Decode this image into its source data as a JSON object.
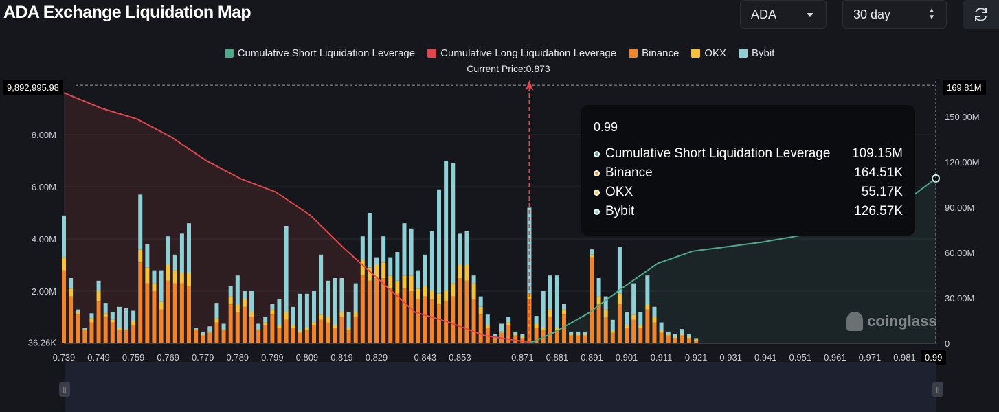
{
  "header": {
    "title": "ADA Exchange Liquidation Map",
    "symbol_select": "ADA",
    "range_select": "30 day"
  },
  "colors": {
    "short": "#4fa88a",
    "long": "#e0474c",
    "binance": "#f0852d",
    "okx": "#f5c33b",
    "bybit": "#8fd0d6"
  },
  "chart_data": {
    "type": "bar",
    "title": "",
    "x_ticks": [
      "0.739",
      "0.749",
      "0.759",
      "0.769",
      "0.779",
      "0.789",
      "0.799",
      "0.809",
      "0.819",
      "0.829",
      "0.843",
      "0.853",
      "0.871",
      "0.881",
      "0.891",
      "0.901",
      "0.911",
      "0.921",
      "0.931",
      "0.941",
      "0.951",
      "0.961",
      "0.971",
      "0.981"
    ],
    "x_end_label": "0.99",
    "left_axis_ticks": [
      "36.26K",
      "2.00M",
      "4.00M",
      "6.00M",
      "8.00M"
    ],
    "left_axis_top": "9,892,995.98",
    "right_axis_ticks": [
      "0",
      "30.00M",
      "60.00M",
      "90.00M",
      "120.00M",
      "150.00M"
    ],
    "right_axis_top": "169.81M",
    "current_price_label": "Current Price:0.873",
    "current_price": 0.873,
    "legend": [
      "Cumulative Short Liquidation Leverage",
      "Cumulative Long Liquidation Leverage",
      "Binance",
      "OKX",
      "Bybit"
    ],
    "bars": [
      [
        0.739,
        2.8,
        0.5,
        1.6
      ],
      [
        0.741,
        1.8,
        0.3,
        0.4
      ],
      [
        0.743,
        1.1,
        0.1,
        0.1
      ],
      [
        0.745,
        0.5,
        0.05,
        0.05
      ],
      [
        0.747,
        0.8,
        0.15,
        0.2
      ],
      [
        0.749,
        1.6,
        0.4,
        0.4
      ],
      [
        0.751,
        1.0,
        0.15,
        0.4
      ],
      [
        0.753,
        0.8,
        0.1,
        0.3
      ],
      [
        0.755,
        0.5,
        0.1,
        0.8
      ],
      [
        0.757,
        0.5,
        0.05,
        0.8
      ],
      [
        0.759,
        0.7,
        0.15,
        0.4
      ],
      [
        0.761,
        3.1,
        0.5,
        2.1
      ],
      [
        0.763,
        2.3,
        0.6,
        0.9
      ],
      [
        0.765,
        2.0,
        0.3,
        0.5
      ],
      [
        0.767,
        1.3,
        0.3,
        1.2
      ],
      [
        0.769,
        2.4,
        0.6,
        1.1
      ],
      [
        0.771,
        2.3,
        0.5,
        0.6
      ],
      [
        0.773,
        2.3,
        0.4,
        1.5
      ],
      [
        0.775,
        2.2,
        0.5,
        1.9
      ],
      [
        0.777,
        0.5,
        0.05,
        0.05
      ],
      [
        0.779,
        0.3,
        0.05,
        0.1
      ],
      [
        0.781,
        0.4,
        0.05,
        0.2
      ],
      [
        0.783,
        0.8,
        0.15,
        0.6
      ],
      [
        0.785,
        0.5,
        0.05,
        0.2
      ],
      [
        0.787,
        1.5,
        0.3,
        0.4
      ],
      [
        0.789,
        1.2,
        0.3,
        1.1
      ],
      [
        0.791,
        1.4,
        0.3,
        0.3
      ],
      [
        0.793,
        1.0,
        0.2,
        0.8
      ],
      [
        0.795,
        0.5,
        0.05,
        0.2
      ],
      [
        0.797,
        0.7,
        0.1,
        0.2
      ],
      [
        0.799,
        1.1,
        0.2,
        0.2
      ],
      [
        0.801,
        0.6,
        0.1,
        1.0
      ],
      [
        0.803,
        0.9,
        0.3,
        3.3
      ],
      [
        0.805,
        0.6,
        0.1,
        0.7
      ],
      [
        0.807,
        0.4,
        0.1,
        1.4
      ],
      [
        0.809,
        0.5,
        0.1,
        1.3
      ],
      [
        0.811,
        0.7,
        0.1,
        1.2
      ],
      [
        0.813,
        0.9,
        0.2,
        2.3
      ],
      [
        0.815,
        0.8,
        0.2,
        1.4
      ],
      [
        0.817,
        0.6,
        0.1,
        1.8
      ],
      [
        0.819,
        1.0,
        0.2,
        1.3
      ],
      [
        0.821,
        0.5,
        0.1,
        0.6
      ],
      [
        0.823,
        1.0,
        0.2,
        1.1
      ],
      [
        0.825,
        2.6,
        0.6,
        0.9
      ],
      [
        0.827,
        2.4,
        0.5,
        2.1
      ],
      [
        0.829,
        2.5,
        0.5,
        0.3
      ],
      [
        0.831,
        2.5,
        0.6,
        1.0
      ],
      [
        0.833,
        2.1,
        0.5,
        0.7
      ],
      [
        0.835,
        1.9,
        0.5,
        1.1
      ],
      [
        0.837,
        2.1,
        0.5,
        2.0
      ],
      [
        0.839,
        2.0,
        0.6,
        1.8
      ],
      [
        0.841,
        1.7,
        0.4,
        0.7
      ],
      [
        0.843,
        1.8,
        0.4,
        1.2
      ],
      [
        0.845,
        1.7,
        0.3,
        2.3
      ],
      [
        0.847,
        1.5,
        0.4,
        4.0
      ],
      [
        0.849,
        1.6,
        0.4,
        5.0
      ],
      [
        0.851,
        1.8,
        0.5,
        4.6
      ],
      [
        0.853,
        2.5,
        0.5,
        1.2
      ],
      [
        0.855,
        2.4,
        0.6,
        1.3
      ],
      [
        0.857,
        1.7,
        0.6,
        0.3
      ],
      [
        0.859,
        1.1,
        0.3,
        0.4
      ],
      [
        0.861,
        0.6,
        0.1,
        0.4
      ],
      [
        0.863,
        0.2,
        0.05,
        0.1
      ],
      [
        0.865,
        0.4,
        0.05,
        0.3
      ],
      [
        0.867,
        0.7,
        0.1,
        0.2
      ],
      [
        0.869,
        0.3,
        0.05,
        0.1
      ],
      [
        0.871,
        0.2,
        0.05,
        0.1
      ],
      [
        0.873,
        1.7,
        0.2,
        3.3
      ],
      [
        0.875,
        0.6,
        0.15,
        0.3
      ],
      [
        0.877,
        0.5,
        0.1,
        1.4
      ],
      [
        0.879,
        1.0,
        0.3,
        1.3
      ],
      [
        0.881,
        0.5,
        0.1,
        2.0
      ],
      [
        0.883,
        1.1,
        0.2,
        0.2
      ],
      [
        0.885,
        0.3,
        0.05,
        0.1
      ],
      [
        0.887,
        0.3,
        0.05,
        0.1
      ],
      [
        0.889,
        0.3,
        0.05,
        0.1
      ],
      [
        0.891,
        3.3,
        0.1,
        0.2
      ],
      [
        0.893,
        1.5,
        0.3,
        0.7
      ],
      [
        0.895,
        1.0,
        0.3,
        0.5
      ],
      [
        0.897,
        0.4,
        0.1,
        0.4
      ],
      [
        0.899,
        1.5,
        0.4,
        1.8
      ],
      [
        0.901,
        0.6,
        0.1,
        0.5
      ],
      [
        0.903,
        0.9,
        0.2,
        1.2
      ],
      [
        0.905,
        0.6,
        0.1,
        0.5
      ],
      [
        0.907,
        1.3,
        0.2,
        1.1
      ],
      [
        0.909,
        0.8,
        0.2,
        0.4
      ],
      [
        0.911,
        0.4,
        0.1,
        0.3
      ],
      [
        0.913,
        0.3,
        0.05,
        0.1
      ],
      [
        0.915,
        0.2,
        0.05,
        0.1
      ],
      [
        0.917,
        0.3,
        0.05,
        0.2
      ],
      [
        0.919,
        0.2,
        0.05,
        0.1
      ],
      [
        0.921,
        0.1,
        0.05,
        0.05
      ]
    ],
    "short_cumulative_points": [
      [
        0.873,
        0
      ],
      [
        0.88,
        7
      ],
      [
        0.89,
        20
      ],
      [
        0.9,
        37
      ],
      [
        0.91,
        53
      ],
      [
        0.92,
        61
      ],
      [
        0.93,
        64
      ],
      [
        0.94,
        67
      ],
      [
        0.95,
        71
      ],
      [
        0.96,
        75
      ],
      [
        0.97,
        81
      ],
      [
        0.98,
        92
      ],
      [
        0.99,
        109.15
      ]
    ],
    "long_cumulative_points": [
      [
        0.739,
        9.6
      ],
      [
        0.75,
        9.0
      ],
      [
        0.76,
        8.6
      ],
      [
        0.77,
        7.9
      ],
      [
        0.78,
        7.0
      ],
      [
        0.79,
        6.3
      ],
      [
        0.8,
        5.8
      ],
      [
        0.81,
        4.9
      ],
      [
        0.82,
        3.6
      ],
      [
        0.83,
        2.4
      ],
      [
        0.84,
        1.2
      ],
      [
        0.85,
        0.8
      ],
      [
        0.86,
        0.3
      ],
      [
        0.873,
        0.04
      ]
    ]
  },
  "tooltip": {
    "title": "0.99",
    "rows": [
      {
        "name": "Cumulative Short Liquidation Leverage",
        "value": "109.15M",
        "color": "#4fa88a"
      },
      {
        "name": "Binance",
        "value": "164.51K",
        "color": "#f0852d"
      },
      {
        "name": "OKX",
        "value": "55.17K",
        "color": "#f5c33b"
      },
      {
        "name": "Bybit",
        "value": "126.57K",
        "color": "#8fd0d6"
      }
    ]
  },
  "watermark": "coinglass"
}
